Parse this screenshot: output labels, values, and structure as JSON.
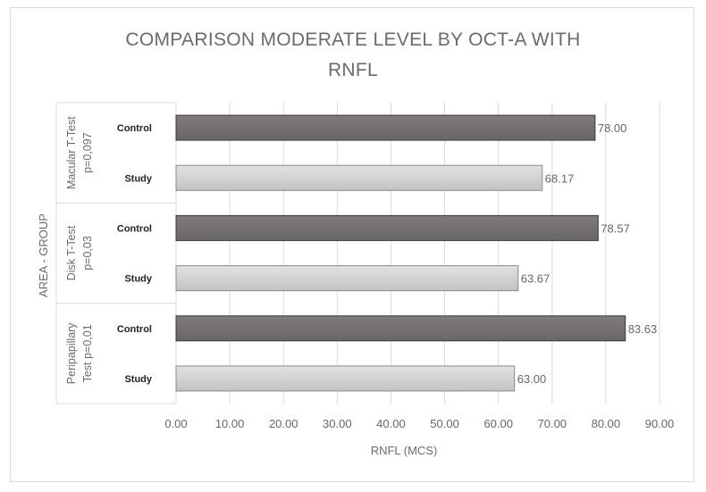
{
  "chart_data": {
    "type": "bar",
    "orientation": "horizontal",
    "title_lines": [
      "COMPARISON MODERATE LEVEL BY OCT-A WITH",
      "RNFL"
    ],
    "xlabel": "RNFL (MCS)",
    "ylabel": "AREA - GROUP",
    "xlim": [
      0,
      90
    ],
    "xticks": [
      "0.00",
      "10.00",
      "20.00",
      "30.00",
      "40.00",
      "50.00",
      "60.00",
      "70.00",
      "80.00",
      "90.00"
    ],
    "grid": true,
    "groups": [
      {
        "label_lines": [
          "Macular  T-Test",
          "p=0,097"
        ],
        "bars": [
          {
            "category": "Control",
            "value": 78.0,
            "label": "78.00"
          },
          {
            "category": "Study",
            "value": 68.17,
            "label": "68.17"
          }
        ]
      },
      {
        "label_lines": [
          "Disk   T-Test",
          "p=0,03"
        ],
        "bars": [
          {
            "category": "Control",
            "value": 78.57,
            "label": "78.57"
          },
          {
            "category": "Study",
            "value": 63.67,
            "label": "63.67"
          }
        ]
      },
      {
        "label_lines": [
          "Peripapillary",
          "Test p=0,01"
        ],
        "bars": [
          {
            "category": "Control",
            "value": 83.63,
            "label": "83.63"
          },
          {
            "category": "Study",
            "value": 63.0,
            "label": "63.00"
          }
        ]
      }
    ],
    "colors": {
      "Control": "#767171",
      "Study": "#cfcfcf"
    }
  }
}
